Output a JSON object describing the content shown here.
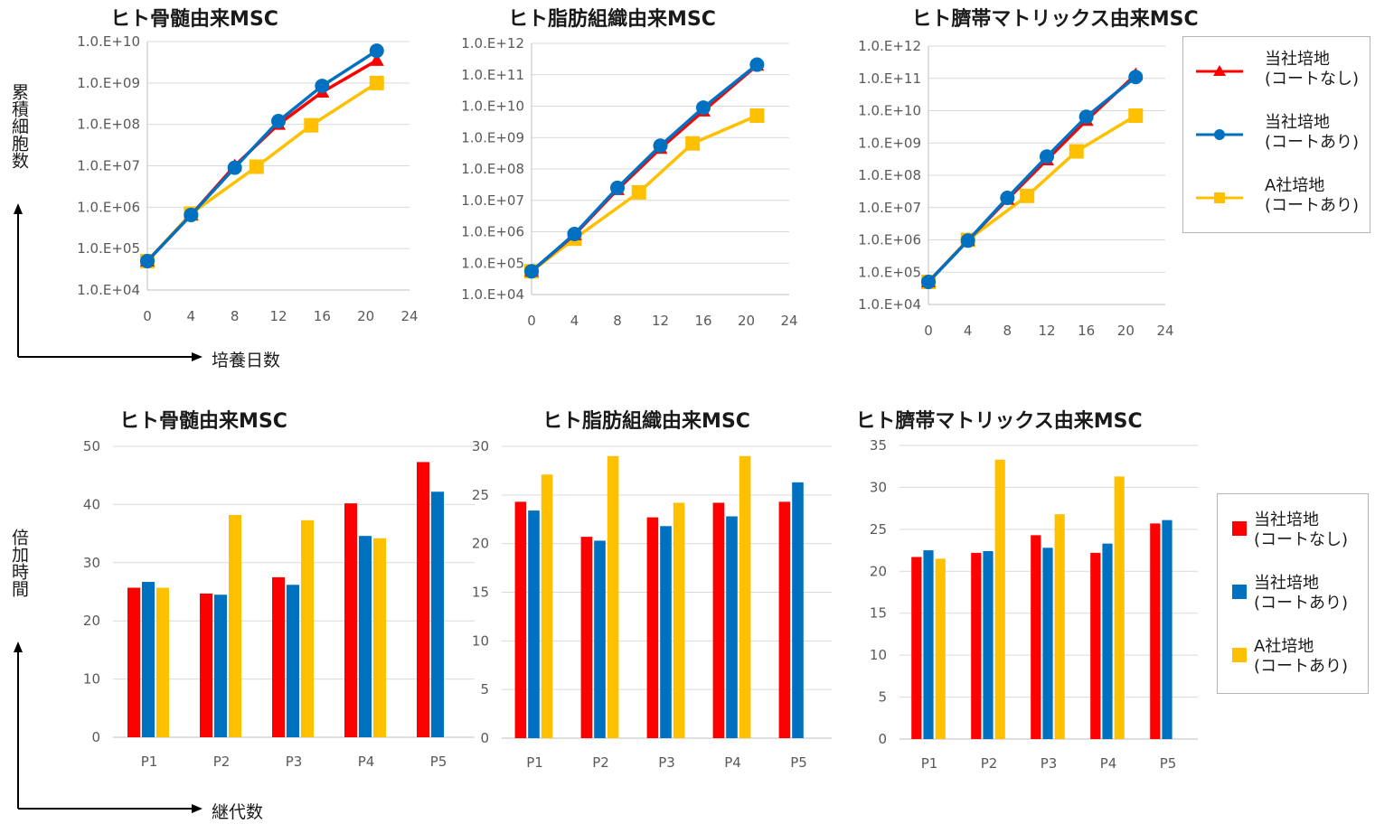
{
  "labels": {
    "line_ylabel": "累積細胞数",
    "line_xlabel": "培養日数",
    "bar_ylabel": "倍加時間",
    "bar_xlabel": "継代数"
  },
  "legend": {
    "items": [
      {
        "label": "当社培地\n(コートなし)",
        "color": "#ff0000"
      },
      {
        "label": "当社培地\n(コートあり)",
        "color": "#0070c0"
      },
      {
        "label": "A社培地\n(コートあり)",
        "color": "#ffc000"
      }
    ]
  },
  "chart_data": [
    {
      "type": "line",
      "title": "ヒト骨髄由来MSC",
      "yscale": "log",
      "ytick_labels": [
        "1.0.E+04",
        "1.0.E+05",
        "1.0.E+06",
        "1.0.E+07",
        "1.0.E+08",
        "1.0.E+09",
        "1.0.E+10"
      ],
      "ylim": [
        10000,
        10000000000
      ],
      "xlim": [
        0,
        24
      ],
      "xticks": [
        0,
        4,
        8,
        12,
        16,
        20,
        24
      ],
      "series": [
        {
          "name": "当社培地(コートなし)",
          "color": "#ff0000",
          "marker": "triangle",
          "x": [
            0,
            4,
            8,
            12,
            16,
            21
          ],
          "y": [
            50000,
            650000,
            10000000,
            100000000,
            600000000,
            3500000000
          ]
        },
        {
          "name": "当社培地(コートあり)",
          "color": "#0070c0",
          "marker": "circle",
          "x": [
            0,
            4,
            8,
            12,
            16,
            21
          ],
          "y": [
            50000,
            650000,
            9000000,
            120000000,
            850000000,
            6000000000
          ]
        },
        {
          "name": "A社培地(コートあり)",
          "color": "#ffc000",
          "marker": "square",
          "x": [
            0,
            4,
            10,
            15,
            21
          ],
          "y": [
            50000,
            700000,
            9500000,
            95000000,
            1000000000
          ]
        }
      ]
    },
    {
      "type": "line",
      "title": "ヒト脂肪組織由来MSC",
      "yscale": "log",
      "ytick_labels": [
        "1.0.E+04",
        "1.0.E+05",
        "1.0.E+06",
        "1.0.E+07",
        "1.0.E+08",
        "1.0.E+09",
        "1.0.E+10",
        "1.0.E+11",
        "1.0.E+12"
      ],
      "ylim": [
        10000,
        1000000000000
      ],
      "xlim": [
        0,
        24
      ],
      "xticks": [
        0,
        4,
        8,
        12,
        16,
        20,
        24
      ],
      "series": [
        {
          "name": "当社培地(コートなし)",
          "color": "#ff0000",
          "marker": "triangle",
          "x": [
            0,
            4,
            8,
            12,
            16,
            21
          ],
          "y": [
            55000,
            800000,
            22000000,
            450000000,
            7000000000,
            200000000000
          ]
        },
        {
          "name": "当社培地(コートあり)",
          "color": "#0070c0",
          "marker": "circle",
          "x": [
            0,
            4,
            8,
            12,
            16,
            21
          ],
          "y": [
            55000,
            850000,
            25000000,
            550000000,
            9000000000,
            210000000000
          ]
        },
        {
          "name": "A社培地(コートあり)",
          "color": "#ffc000",
          "marker": "square",
          "x": [
            0,
            4,
            10,
            15,
            21
          ],
          "y": [
            55000,
            600000,
            18000000,
            650000000,
            5000000000
          ]
        }
      ]
    },
    {
      "type": "line",
      "title": "ヒト臍帯マトリックス由来MSC",
      "yscale": "log",
      "ytick_labels": [
        "1.0.E+04",
        "1.0.E+05",
        "1.0.E+06",
        "1.0.E+07",
        "1.0.E+08",
        "1.0.E+09",
        "1.0.E+10",
        "1.0.E+11",
        "1.0.E+12"
      ],
      "ylim": [
        10000,
        1000000000000
      ],
      "xlim": [
        0,
        24
      ],
      "xticks": [
        0,
        4,
        8,
        12,
        16,
        20,
        24
      ],
      "series": [
        {
          "name": "当社培地(コートなし)",
          "color": "#ff0000",
          "marker": "triangle",
          "x": [
            0,
            4,
            8,
            12,
            16,
            21
          ],
          "y": [
            50000,
            950000,
            18000000,
            300000000,
            5000000000,
            130000000000
          ]
        },
        {
          "name": "当社培地(コートあり)",
          "color": "#0070c0",
          "marker": "circle",
          "x": [
            0,
            4,
            8,
            12,
            16,
            21
          ],
          "y": [
            50000,
            950000,
            20000000,
            380000000,
            6500000000,
            110000000000
          ]
        },
        {
          "name": "A社培地(コートあり)",
          "color": "#ffc000",
          "marker": "square",
          "x": [
            0,
            4,
            10,
            15,
            21
          ],
          "y": [
            50000,
            1000000,
            23000000,
            550000000,
            7000000000
          ]
        }
      ]
    },
    {
      "type": "bar",
      "title": "ヒト骨髄由来MSC",
      "categories": [
        "P1",
        "P2",
        "P3",
        "P4",
        "P5"
      ],
      "ylim": [
        0,
        50
      ],
      "yticks": [
        0,
        10,
        20,
        30,
        40,
        50
      ],
      "series": [
        {
          "name": "当社培地(コートなし)",
          "color": "#ff0000",
          "values": [
            25.7,
            24.7,
            27.5,
            40.2,
            47.3
          ]
        },
        {
          "name": "当社培地(コートあり)",
          "color": "#0070c0",
          "values": [
            26.7,
            24.5,
            26.2,
            34.6,
            42.2
          ]
        },
        {
          "name": "A社培地(コートあり)",
          "color": "#ffc000",
          "values": [
            25.7,
            38.2,
            37.3,
            34.2,
            null
          ]
        }
      ]
    },
    {
      "type": "bar",
      "title": "ヒト脂肪組織由来MSC",
      "categories": [
        "P1",
        "P2",
        "P3",
        "P4",
        "P5"
      ],
      "ylim": [
        0,
        30
      ],
      "yticks": [
        0,
        5,
        10,
        15,
        20,
        25,
        30
      ],
      "series": [
        {
          "name": "当社培地(コートなし)",
          "color": "#ff0000",
          "values": [
            24.3,
            20.7,
            22.7,
            24.2,
            24.3
          ]
        },
        {
          "name": "当社培地(コートあり)",
          "color": "#0070c0",
          "values": [
            23.4,
            20.3,
            21.8,
            22.8,
            26.3
          ]
        },
        {
          "name": "A社培地(コートあり)",
          "color": "#ffc000",
          "values": [
            27.1,
            29.0,
            24.2,
            29.0,
            null
          ]
        }
      ]
    },
    {
      "type": "bar",
      "title": "ヒト臍帯マトリックス由来MSC",
      "categories": [
        "P1",
        "P2",
        "P3",
        "P4",
        "P5"
      ],
      "ylim": [
        0,
        35
      ],
      "yticks": [
        0,
        5,
        10,
        15,
        20,
        25,
        30,
        35
      ],
      "series": [
        {
          "name": "当社培地(コートなし)",
          "color": "#ff0000",
          "values": [
            21.7,
            22.2,
            24.3,
            22.2,
            25.7
          ]
        },
        {
          "name": "当社培地(コートあり)",
          "color": "#0070c0",
          "values": [
            22.5,
            22.4,
            22.8,
            23.3,
            26.1
          ]
        },
        {
          "name": "A社培地(コートあり)",
          "color": "#ffc000",
          "values": [
            21.5,
            33.3,
            26.8,
            31.3,
            null
          ]
        }
      ]
    }
  ]
}
